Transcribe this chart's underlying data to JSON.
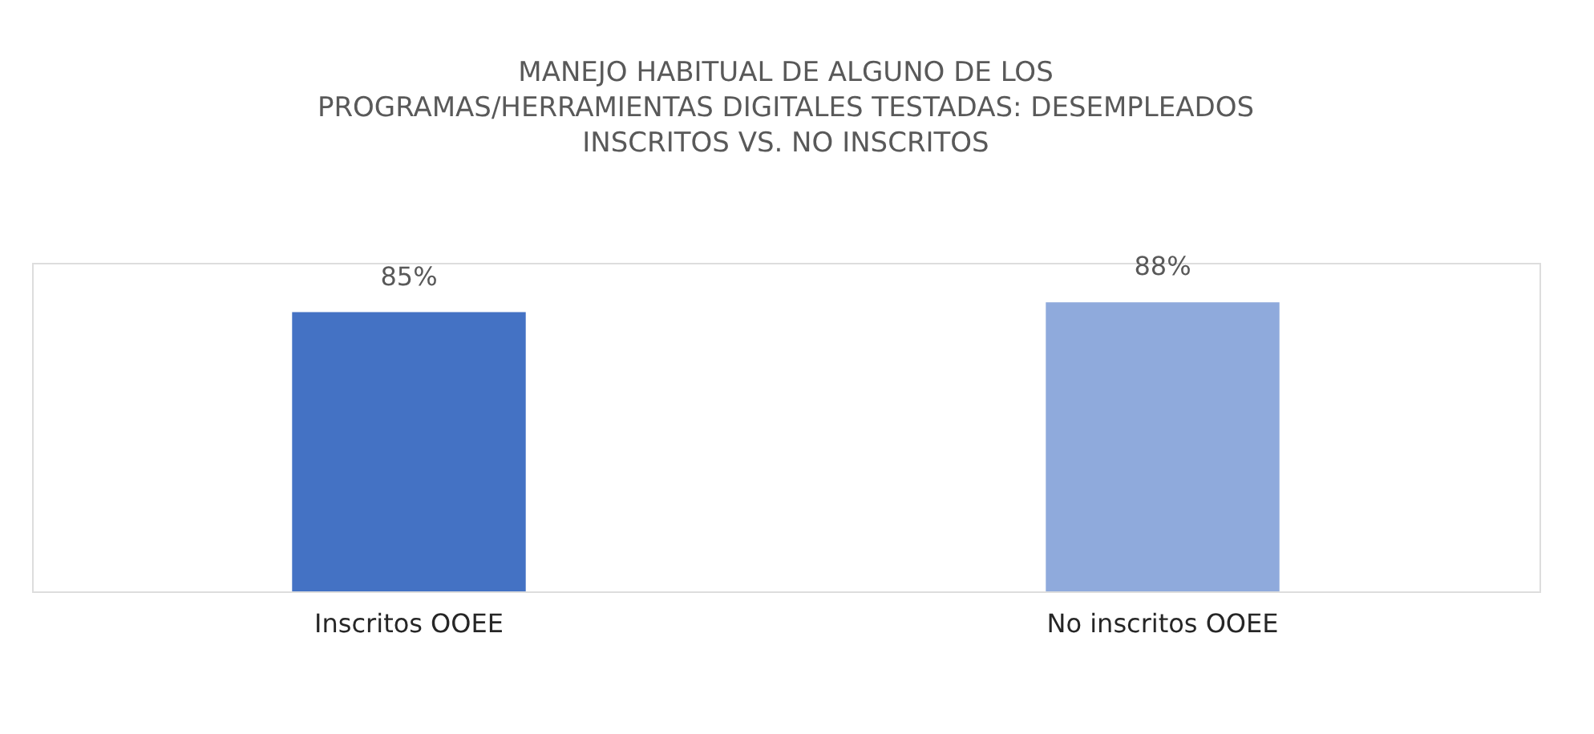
{
  "chart_data": {
    "type": "bar",
    "title": "MANEJO HABITUAL DE ALGUNO DE LOS\nPROGRAMAS/HERRAMIENTAS DIGITALES TESTADAS: DESEMPLEADOS\nINSCRITOS VS. NO INSCRITOS",
    "categories": [
      "Inscritos OOEE",
      "No inscritos OOEE"
    ],
    "values": [
      85,
      88
    ],
    "colors": [
      "#4472c4",
      "#8faadc"
    ],
    "value_labels": [
      "85%",
      "88%"
    ],
    "ylim": [
      0,
      100
    ],
    "grid": false,
    "tick_labels": "x"
  }
}
